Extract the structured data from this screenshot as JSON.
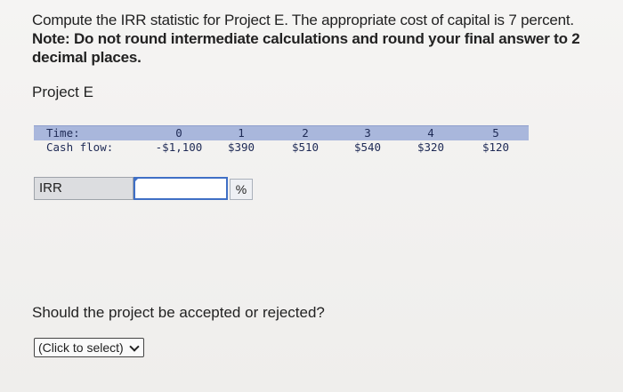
{
  "prompt": {
    "line1": "Compute the IRR statistic for Project E. The appropriate cost of capital is 7 percent.",
    "note": "Note: Do not round intermediate calculations and round your final answer to 2 decimal places."
  },
  "project_label": "Project E",
  "cash_flow_table": {
    "time_label": "Time:",
    "cash_flow_label": "Cash flow:",
    "periods": [
      "0",
      "1",
      "2",
      "3",
      "4",
      "5"
    ],
    "cash_flows": [
      "-$1,100",
      "$390",
      "$510",
      "$540",
      "$320",
      "$120"
    ],
    "header_band_color": "#a9b7dc"
  },
  "irr": {
    "label": "IRR",
    "value": "",
    "unit": "%"
  },
  "question": "Should the project be accepted or rejected?",
  "decision_select": {
    "selected": "(Click to select)"
  }
}
